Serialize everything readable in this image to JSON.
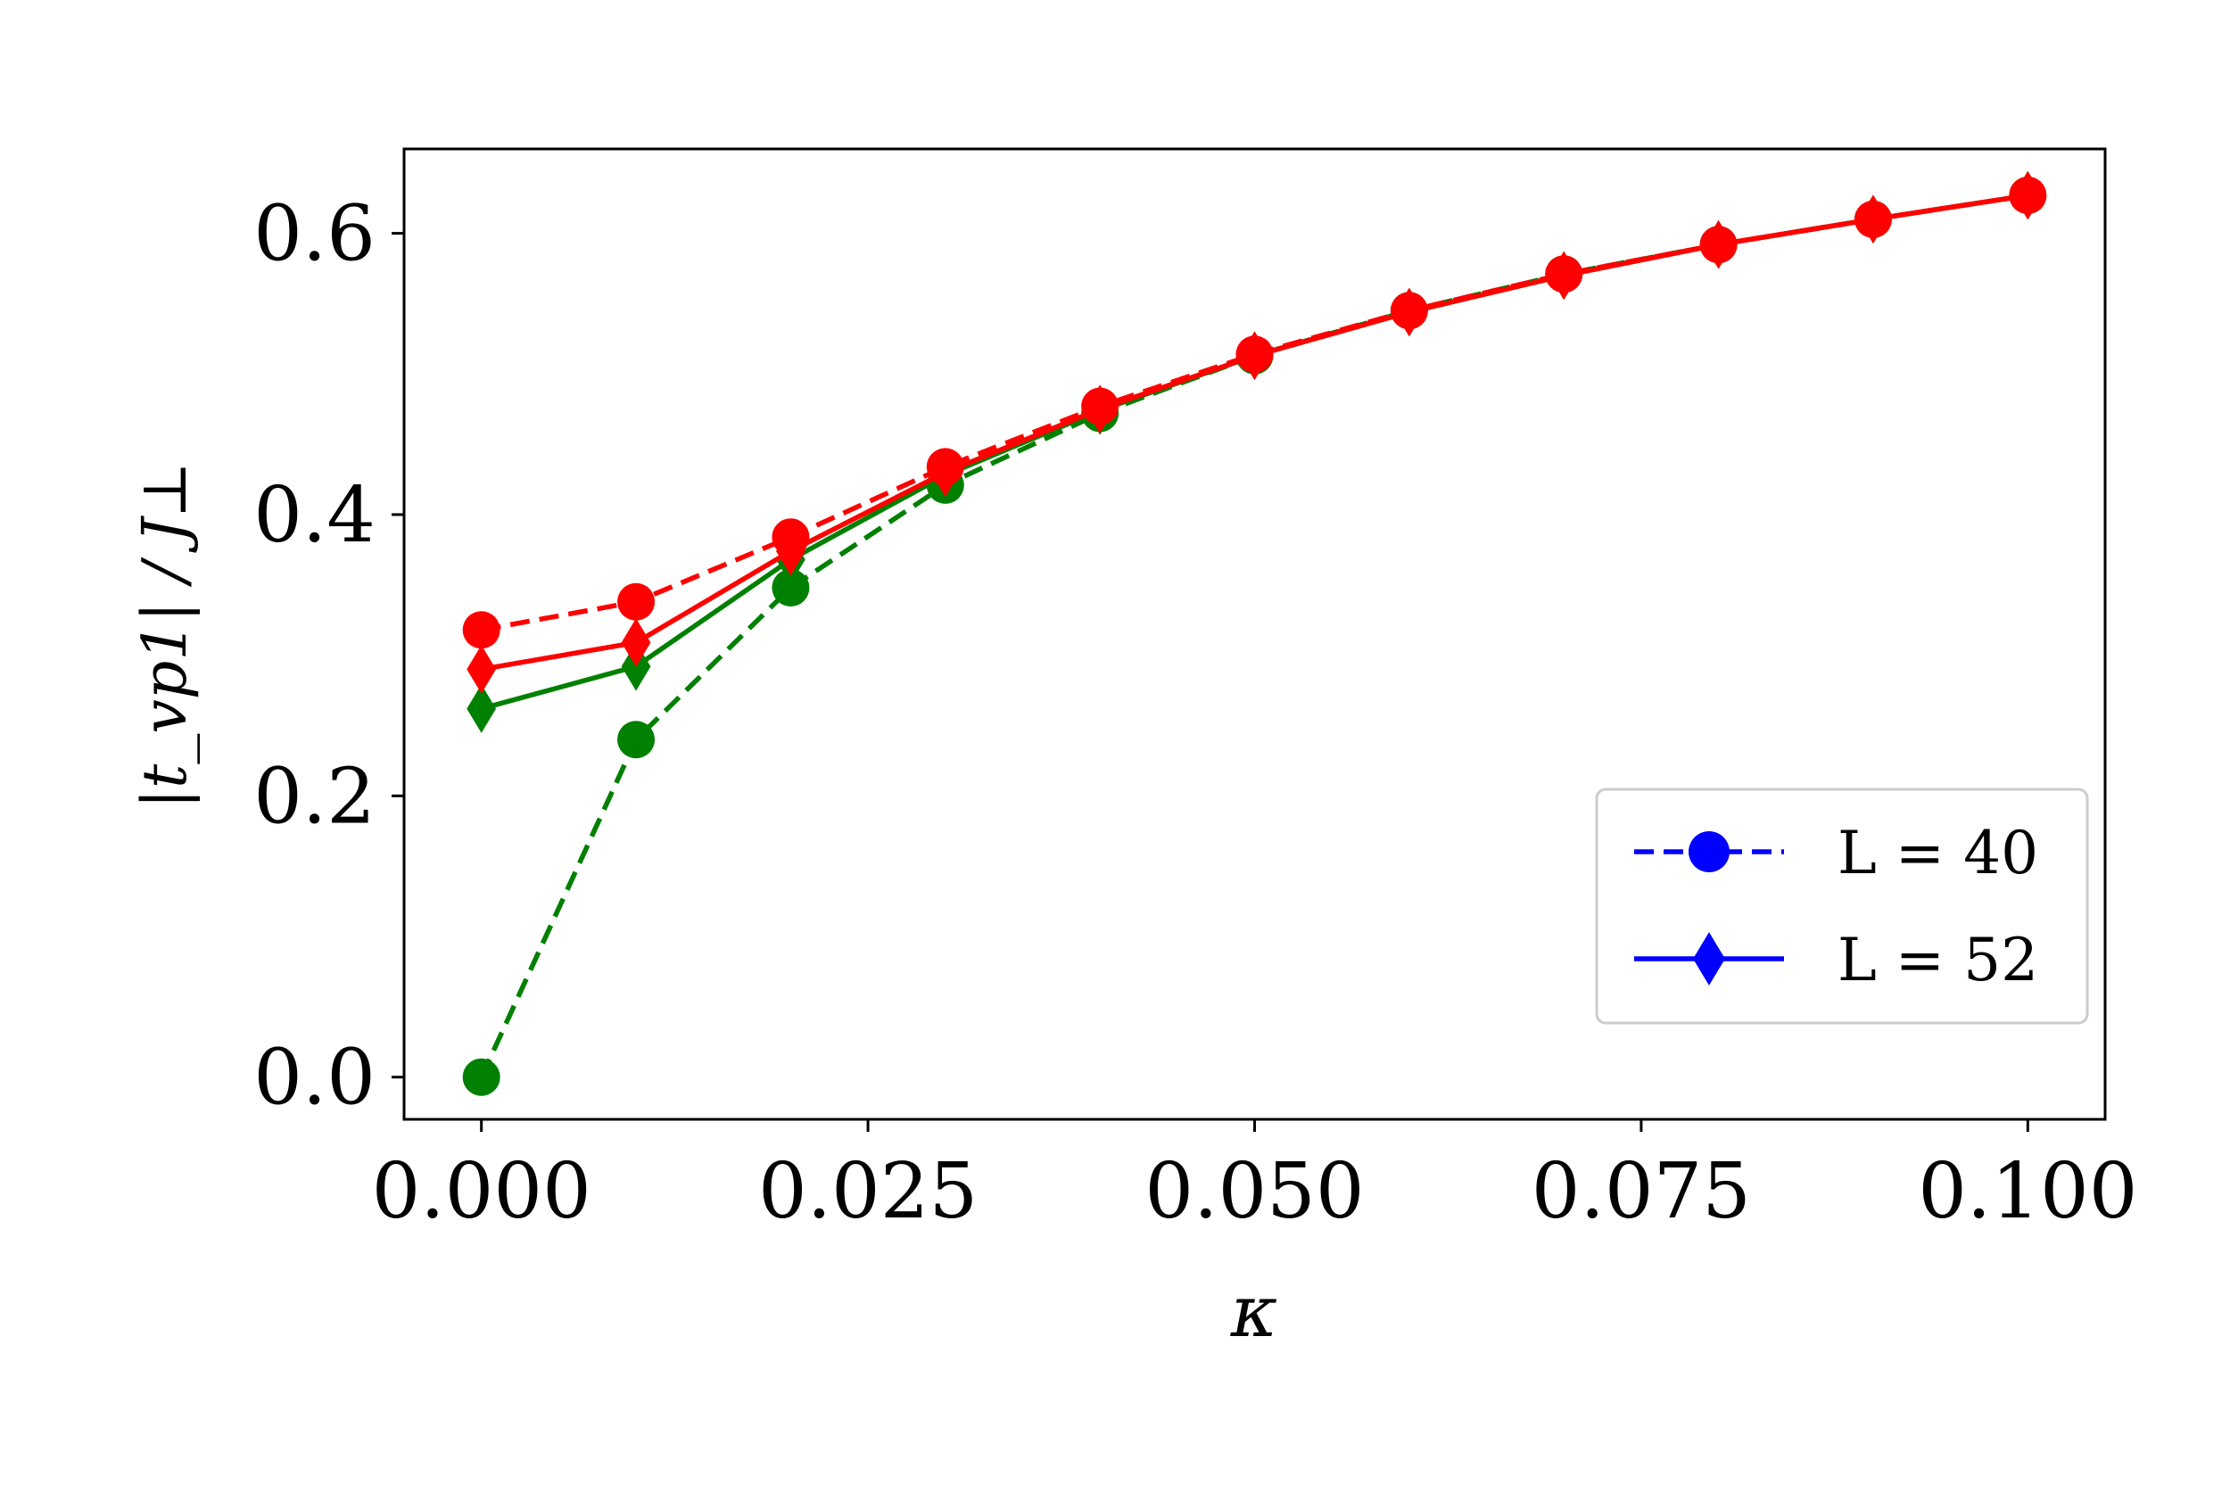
{
  "chart_data": {
    "type": "line",
    "xlabel": "κ",
    "ylabel": "|t_vp1| / J⊥",
    "xlim": [
      -0.005,
      0.105
    ],
    "ylim": [
      -0.03,
      0.66
    ],
    "x_ticks": [
      "0.000",
      "0.025",
      "0.050",
      "0.075",
      "0.100"
    ],
    "y_ticks": [
      "0.0",
      "0.2",
      "0.4",
      "0.6"
    ],
    "grid": false,
    "legend_position": "lower-right",
    "legend": [
      {
        "label": "L = 40",
        "marker": "circle",
        "linestyle": "dashed",
        "color": "#0000ff"
      },
      {
        "label": "L = 52",
        "marker": "diamond",
        "linestyle": "solid",
        "color": "#0000ff"
      }
    ],
    "series": [
      {
        "color": "#008000",
        "marker": "circle",
        "linestyle": "dashed",
        "x": [
          0.0,
          0.01,
          0.02,
          0.03,
          0.04,
          0.05,
          0.06,
          0.07,
          0.08,
          0.09,
          0.1
        ],
        "y": [
          0.0,
          0.24,
          0.348,
          0.421,
          0.472,
          0.513,
          0.545,
          0.571,
          0.592,
          0.61,
          0.627
        ]
      },
      {
        "color": "#008000",
        "marker": "diamond",
        "linestyle": "solid",
        "x": [
          0.0,
          0.01,
          0.02,
          0.03,
          0.04,
          0.05,
          0.06,
          0.07,
          0.08,
          0.09,
          0.1
        ],
        "y": [
          0.262,
          0.292,
          0.368,
          0.428,
          0.474,
          0.513,
          0.544,
          0.57,
          0.592,
          0.61,
          0.627
        ]
      },
      {
        "color": "#ff0000",
        "marker": "diamond",
        "linestyle": "solid",
        "x": [
          0.0,
          0.01,
          0.02,
          0.03,
          0.04,
          0.05,
          0.06,
          0.07,
          0.08,
          0.09,
          0.1
        ],
        "y": [
          0.29,
          0.309,
          0.374,
          0.43,
          0.475,
          0.513,
          0.544,
          0.57,
          0.592,
          0.61,
          0.627
        ]
      },
      {
        "color": "#ff0000",
        "marker": "circle",
        "linestyle": "dashed",
        "x": [
          0.0,
          0.01,
          0.02,
          0.03,
          0.04,
          0.05,
          0.06,
          0.07,
          0.08,
          0.09,
          0.1
        ],
        "y": [
          0.318,
          0.338,
          0.384,
          0.434,
          0.477,
          0.514,
          0.545,
          0.571,
          0.592,
          0.61,
          0.627
        ]
      }
    ]
  }
}
